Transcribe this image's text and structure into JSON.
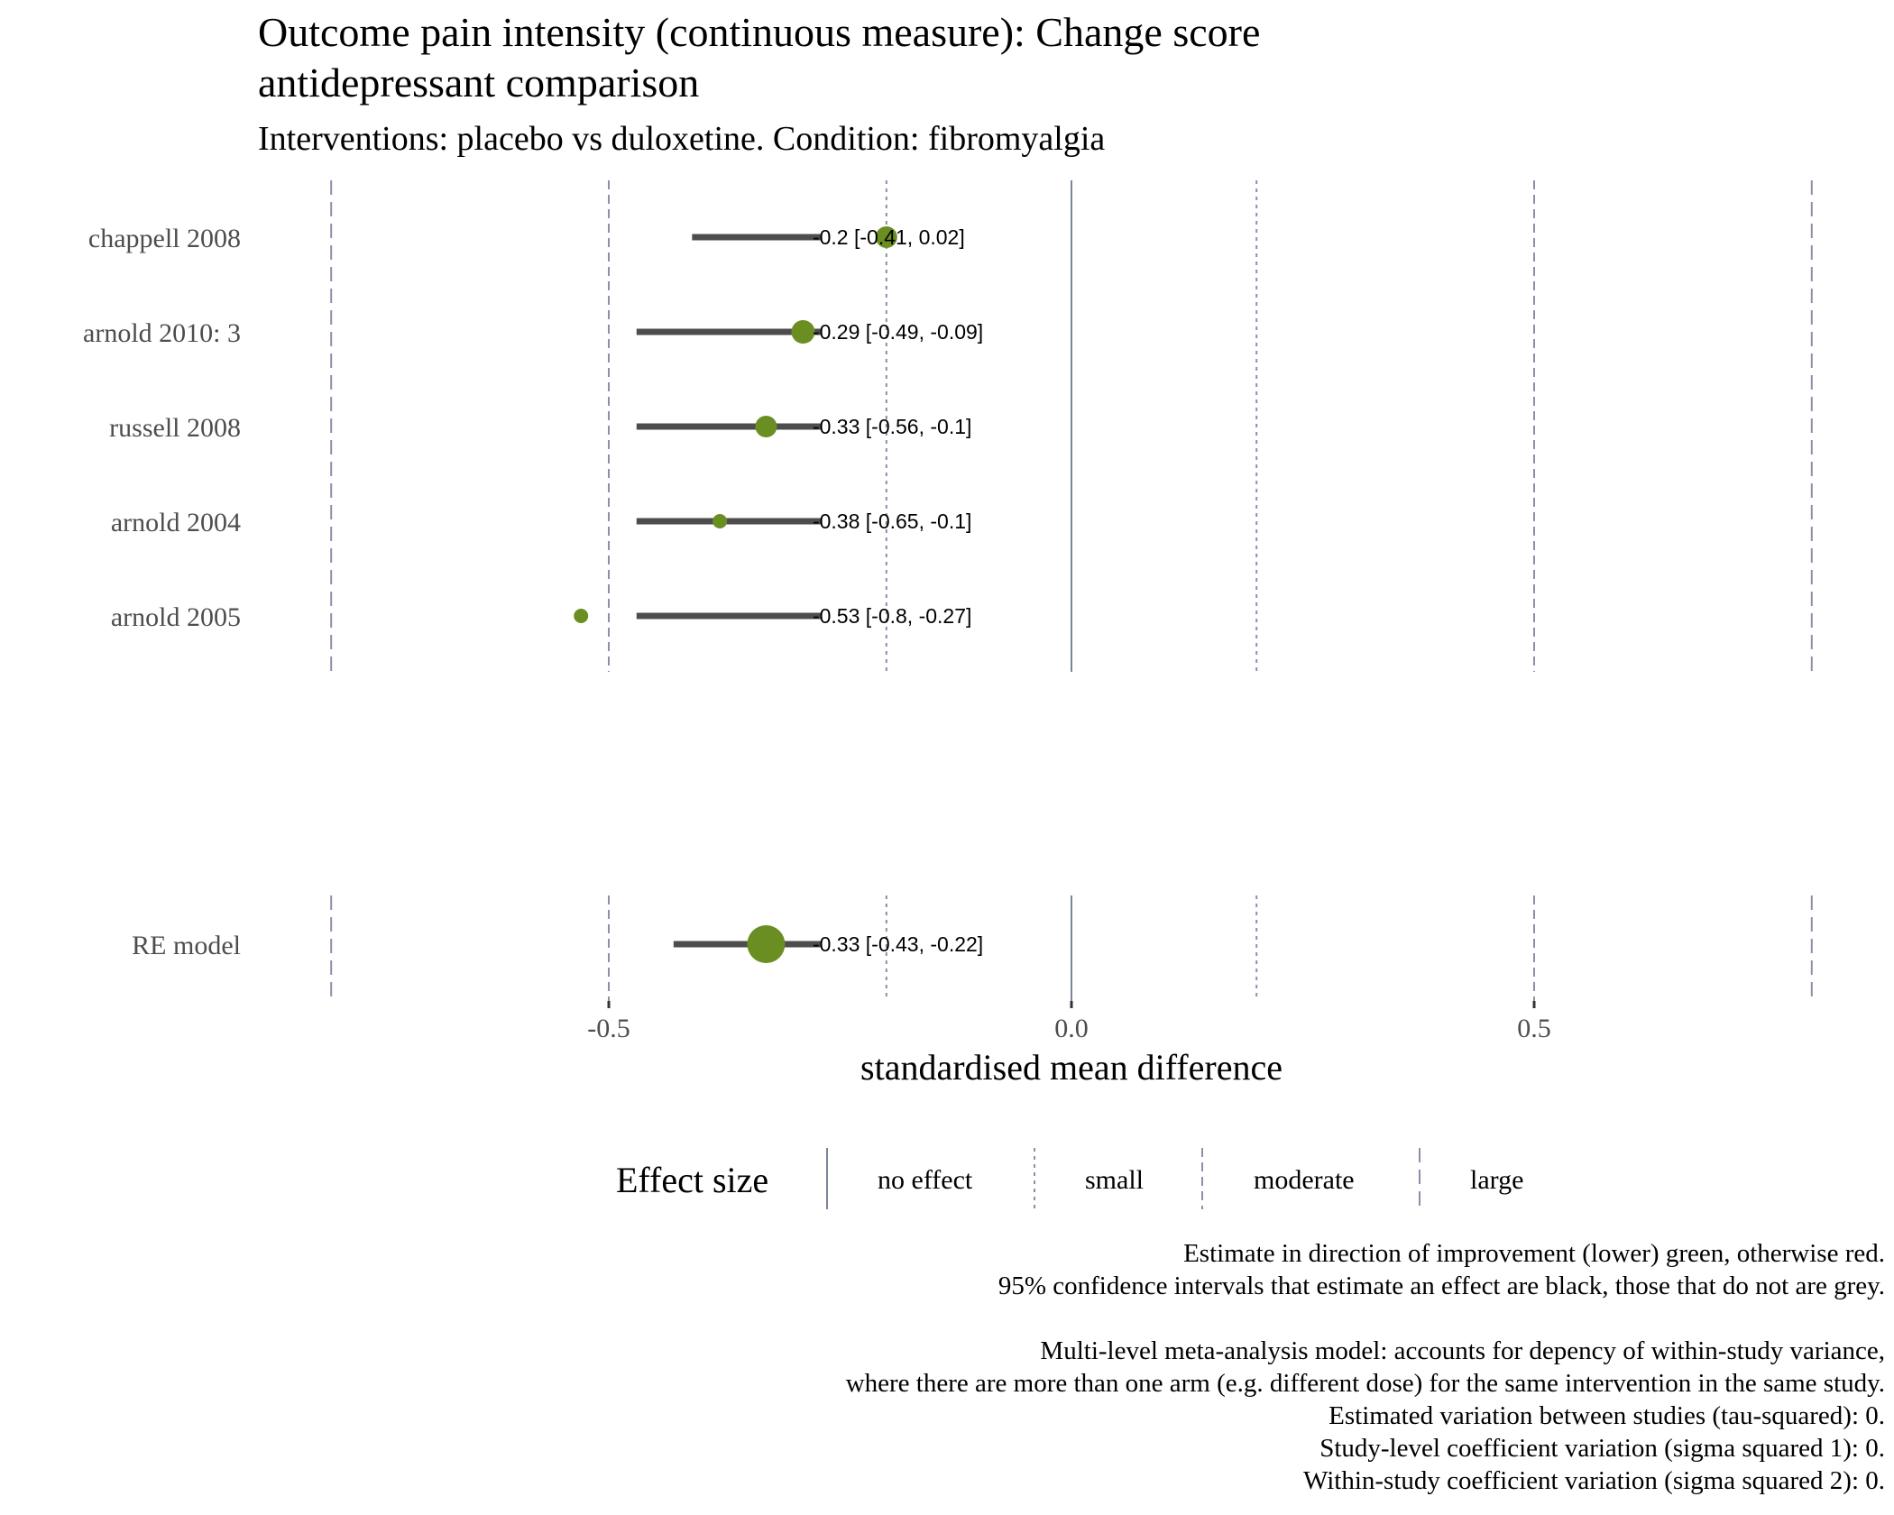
{
  "title_line1": "Outcome pain intensity (continuous measure): Change score",
  "title_line2": "antidepressant comparison",
  "subtitle": "Interventions: placebo vs duloxetine. Condition: fibromyalgia",
  "colors": {
    "improvement": "#6b8e23",
    "ci_bar": "#4d4d4d",
    "reference_lines": "#8b8fa8",
    "zero_line": "#7a8499",
    "axis_text": "#4d4d4d"
  },
  "chart_data": {
    "type": "forest",
    "xlabel": "standardised mean difference",
    "xlim": [
      -0.8,
      0.8
    ],
    "xticks": [
      -0.5,
      0.0,
      0.5
    ],
    "xtick_labels": [
      "-0.5",
      "0.0",
      "0.5"
    ],
    "reference_lines": [
      {
        "x": -0.8,
        "style": "large"
      },
      {
        "x": -0.5,
        "style": "moderate"
      },
      {
        "x": -0.2,
        "style": "small"
      },
      {
        "x": 0.0,
        "style": "no effect"
      },
      {
        "x": 0.2,
        "style": "small"
      },
      {
        "x": 0.5,
        "style": "moderate"
      },
      {
        "x": 0.8,
        "style": "large"
      }
    ],
    "studies": [
      {
        "label": "chappell 2008",
        "estimate": -0.2,
        "ci_low": -0.41,
        "ci_high": 0.02,
        "ci_text": "-0.2 [-0.41, 0.02]",
        "weight": "medium"
      },
      {
        "label": "arnold 2010: 3",
        "estimate": -0.29,
        "ci_low": -0.49,
        "ci_high": -0.09,
        "ci_text": "-0.29 [-0.49, -0.09]",
        "weight": "large"
      },
      {
        "label": "russell 2008",
        "estimate": -0.33,
        "ci_low": -0.56,
        "ci_high": -0.1,
        "ci_text": "-0.33 [-0.56, -0.1]",
        "weight": "medium"
      },
      {
        "label": "arnold 2004",
        "estimate": -0.38,
        "ci_low": -0.65,
        "ci_high": -0.1,
        "ci_text": "-0.38 [-0.65, -0.1]",
        "weight": "small"
      },
      {
        "label": "arnold 2005",
        "estimate": -0.53,
        "ci_low": -0.8,
        "ci_high": -0.27,
        "ci_text": "-0.53 [-0.8, -0.27]",
        "weight": "small"
      }
    ],
    "summary": {
      "label": "RE model",
      "estimate": -0.33,
      "ci_low": -0.43,
      "ci_high": -0.22,
      "ci_text": "-0.33 [-0.43, -0.22]",
      "weight": "summary"
    }
  },
  "legend": {
    "title": "Effect size",
    "items": [
      "no effect",
      "small",
      "moderate",
      "large"
    ]
  },
  "caption_lines": [
    "Estimate in direction of improvement (lower) green, otherwise red.",
    "95% confidence intervals that estimate an effect are black, those that do not are grey.",
    "",
    "Multi-level meta-analysis model: accounts for depency of within-study variance,",
    "where there are more than one arm (e.g. different dose) for the same intervention in the same study.",
    "Estimated variation between studies (tau-squared): 0.",
    "Study-level coefficient variation (sigma squared 1): 0.",
    "Within-study coefficient variation (sigma squared 2): 0."
  ]
}
